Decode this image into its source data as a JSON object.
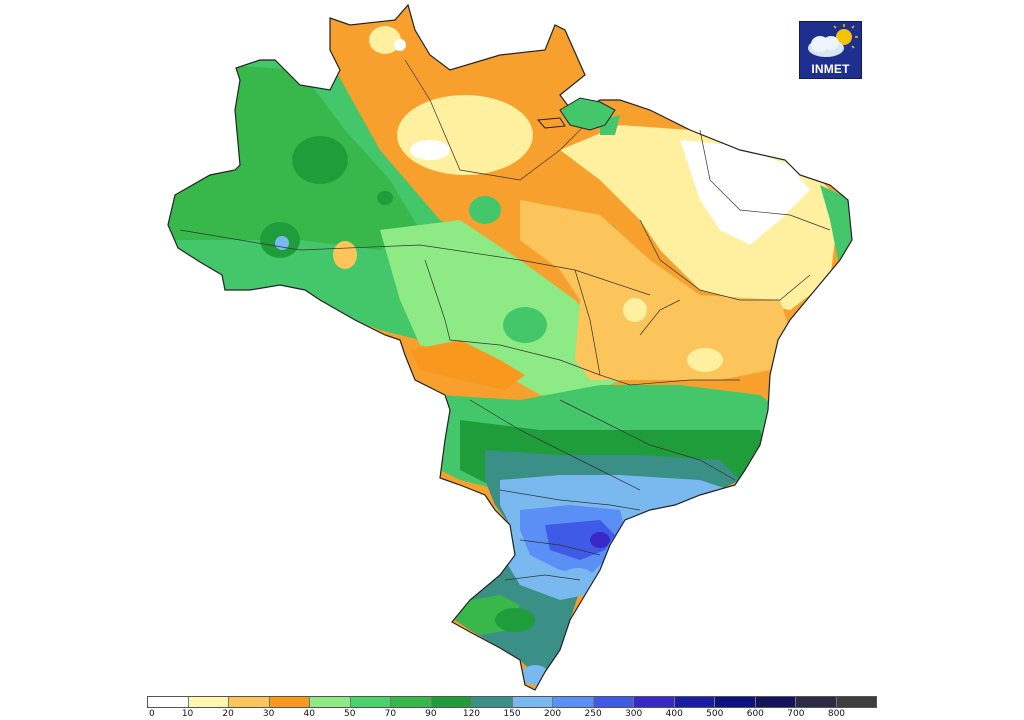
{
  "logo": {
    "text": "INMET",
    "icon": "cloud-sun-icon"
  },
  "legend": {
    "ticks": [
      "0",
      "10",
      "20",
      "30",
      "40",
      "50",
      "70",
      "90",
      "120",
      "150",
      "200",
      "250",
      "300",
      "400",
      "500",
      "600",
      "700",
      "800"
    ],
    "colors": [
      "#ffffff",
      "#fff6b0",
      "#fbc55c",
      "#f8991d",
      "#8dea85",
      "#4bd26c",
      "#38b84a",
      "#1f9d3a",
      "#3a8f86",
      "#79b9f0",
      "#5a8ff5",
      "#3f5ae6",
      "#3828c8",
      "#1b1ca5",
      "#0f1183",
      "#13145c",
      "#2b2b45",
      "#3d3d3d"
    ]
  },
  "map": {
    "subject": "Brazil precipitation map",
    "region_colors": {
      "north_green": "#44c76a",
      "north_dark_green": "#1f9d3a",
      "north_orange": "#f8a02d",
      "north_yellow": "#fff0a0",
      "northeast_white": "#ffffff",
      "center_light_green": "#8dea85",
      "southeast_green": "#1fa040",
      "south_teal": "#3a8f86",
      "south_light_blue": "#79b9f0",
      "south_blue": "#5a8ff5",
      "south_dark_blue": "#3828c8"
    }
  }
}
